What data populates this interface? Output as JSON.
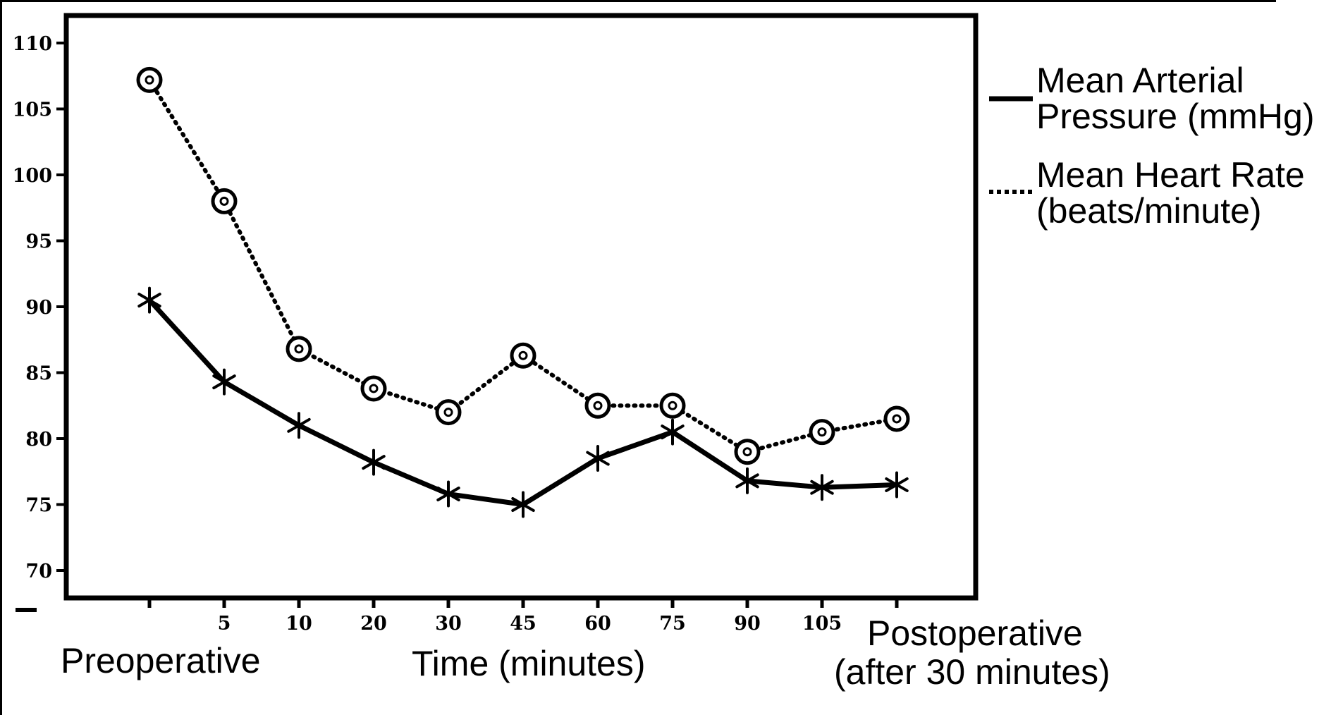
{
  "chart_data": {
    "type": "line",
    "title": "",
    "xlabel": "Time (minutes)",
    "ylabel": "",
    "categories": [
      "",
      "5",
      "10",
      "20",
      "30",
      "45",
      "60",
      "75",
      "90",
      "105",
      ""
    ],
    "category_captions": {
      "first": "Preoperative",
      "last_line1": "Postoperative",
      "last_line2": "(after 30 minutes)"
    },
    "y_ticks": [
      70,
      75,
      80,
      85,
      90,
      95,
      100,
      105,
      110
    ],
    "ylim": [
      68,
      111.5
    ],
    "grid": false,
    "legend_position": "right",
    "series": [
      {
        "name_line1": "Mean Arterial",
        "name_line2": "Pressure (mmHg)",
        "style": "solid",
        "marker": "star",
        "values": [
          90.5,
          84.3,
          81.0,
          78.2,
          75.8,
          75.0,
          78.5,
          80.5,
          76.8,
          76.3,
          76.5
        ]
      },
      {
        "name_line1": "Mean Heart Rate",
        "name_line2": "(beats/minute)",
        "style": "dotted",
        "marker": "circle",
        "values": [
          107.2,
          98.0,
          86.8,
          83.8,
          82.0,
          86.3,
          82.5,
          82.5,
          79.0,
          80.5,
          81.5
        ]
      }
    ]
  }
}
